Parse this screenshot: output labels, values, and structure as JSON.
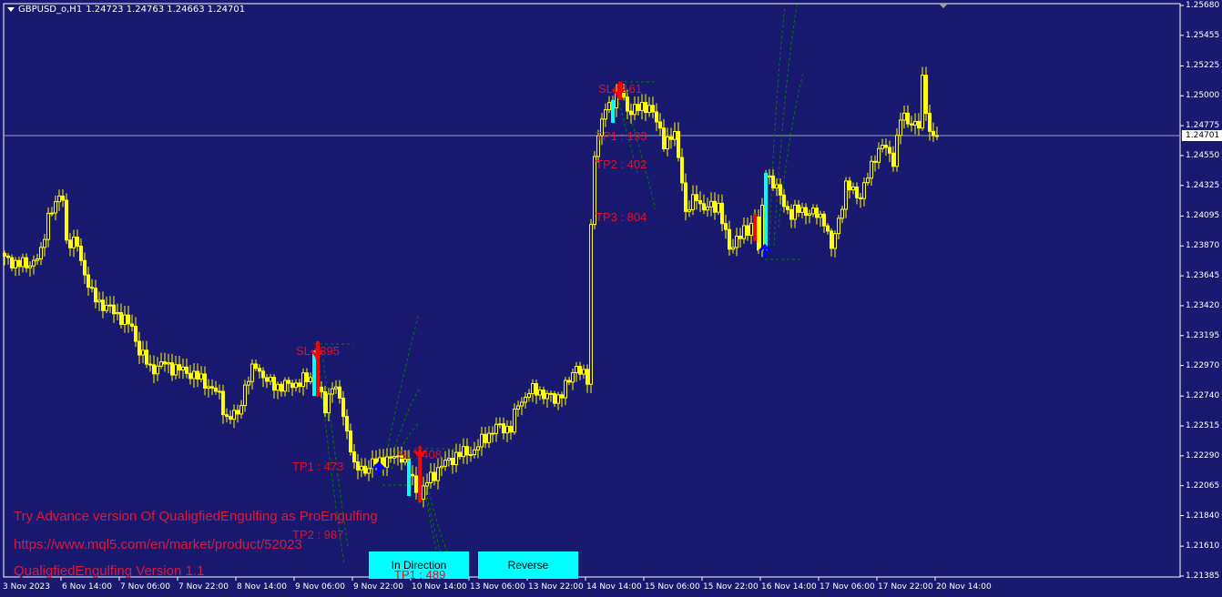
{
  "header": {
    "symbol": "GBPUSD_o,H1",
    "ohlc": "1.24723 1.24763 1.24663 1.24701"
  },
  "current_price": "1.24701",
  "colors": {
    "background": "#191970",
    "candle": "#ffff00",
    "bull_signal": "#00ffff",
    "bear_signal": "#ff0000",
    "target_line": "#008000",
    "label": "#e0102a",
    "button": "#00ffff"
  },
  "chart_data": {
    "type": "candlestick",
    "title": "GBPUSD_o,H1",
    "ylim": [
      1.21385,
      1.2568
    ],
    "y_ticks": [
      "1.25680",
      "1.25455",
      "1.25225",
      "1.25000",
      "1.24775",
      "1.24550",
      "1.24325",
      "1.24095",
      "1.23870",
      "1.23645",
      "1.23420",
      "1.23195",
      "1.22970",
      "1.22740",
      "1.22515",
      "1.22290",
      "1.22065",
      "1.21840",
      "1.21610",
      "1.21385"
    ],
    "x_ticks": [
      "3 Nov 2023",
      "6 Nov 14:00",
      "7 Nov 06:00",
      "7 Nov 22:00",
      "8 Nov 14:00",
      "9 Nov 06:00",
      "9 Nov 22:00",
      "10 Nov 14:00",
      "13 Nov 06:00",
      "13 Nov 22:00",
      "14 Nov 14:00",
      "15 Nov 06:00",
      "15 Nov 22:00",
      "16 Nov 14:00",
      "17 Nov 06:00",
      "17 Nov 22:00",
      "20 Nov 14:00"
    ],
    "bars_per_x_tick": 16,
    "close_keypoints": [
      [
        0,
        1.23769
      ],
      [
        6,
        1.23721
      ],
      [
        10,
        1.23803
      ],
      [
        12,
        1.24111
      ],
      [
        16,
        1.24248
      ],
      [
        17,
        1.23906
      ],
      [
        20,
        1.23872
      ],
      [
        22,
        1.23666
      ],
      [
        24,
        1.23495
      ],
      [
        27,
        1.23426
      ],
      [
        31,
        1.23358
      ],
      [
        35,
        1.23255
      ],
      [
        37,
        1.23084
      ],
      [
        40,
        1.22947
      ],
      [
        44,
        1.22981
      ],
      [
        47,
        1.22947
      ],
      [
        51,
        1.22913
      ],
      [
        55,
        1.22844
      ],
      [
        59,
        1.22741
      ],
      [
        61,
        1.2257
      ],
      [
        64,
        1.22604
      ],
      [
        66,
        1.2281
      ],
      [
        69,
        1.22981
      ],
      [
        72,
        1.22844
      ],
      [
        76,
        1.2281
      ],
      [
        81,
        1.22844
      ],
      [
        84,
        1.22878
      ],
      [
        85,
        1.22981
      ],
      [
        86,
        1.2281
      ],
      [
        88,
        1.22639
      ],
      [
        90,
        1.22844
      ],
      [
        92,
        1.22707
      ],
      [
        95,
        1.22365
      ],
      [
        96,
        1.22193
      ],
      [
        99,
        1.22193
      ],
      [
        101,
        1.22227
      ],
      [
        104,
        1.22262
      ],
      [
        106,
        1.22262
      ],
      [
        109,
        1.22296
      ],
      [
        111,
        1.22159
      ],
      [
        114,
        1.21988
      ],
      [
        116,
        1.22091
      ],
      [
        119,
        1.22193
      ],
      [
        124,
        1.22296
      ],
      [
        129,
        1.2233
      ],
      [
        132,
        1.22433
      ],
      [
        135,
        1.22502
      ],
      [
        139,
        1.22502
      ],
      [
        141,
        1.22673
      ],
      [
        144,
        1.22776
      ],
      [
        147,
        1.22776
      ],
      [
        151,
        1.22707
      ],
      [
        155,
        1.22844
      ],
      [
        157,
        1.22981
      ],
      [
        160,
        1.22844
      ],
      [
        161,
        1.24009
      ],
      [
        162,
        1.24591
      ],
      [
        165,
        1.24899
      ],
      [
        167,
        1.24968
      ],
      [
        169,
        1.25036
      ],
      [
        171,
        1.24899
      ],
      [
        174,
        1.24899
      ],
      [
        177,
        1.24933
      ],
      [
        179,
        1.24796
      ],
      [
        181,
        1.24659
      ],
      [
        184,
        1.24694
      ],
      [
        186,
        1.24385
      ],
      [
        187,
        1.24111
      ],
      [
        190,
        1.24248
      ],
      [
        192,
        1.24146
      ],
      [
        196,
        1.2418
      ],
      [
        199,
        1.23837
      ],
      [
        201,
        1.2394
      ],
      [
        204,
        1.23974
      ],
      [
        206,
        1.24111
      ],
      [
        207,
        1.23837
      ],
      [
        209,
        1.2442
      ],
      [
        211,
        1.24351
      ],
      [
        214,
        1.2418
      ],
      [
        216,
        1.24111
      ],
      [
        219,
        1.24146
      ],
      [
        222,
        1.24111
      ],
      [
        225,
        1.24077
      ],
      [
        227,
        1.23837
      ],
      [
        229,
        1.24077
      ],
      [
        231,
        1.24317
      ],
      [
        235,
        1.24248
      ],
      [
        237,
        1.24385
      ],
      [
        239,
        1.24557
      ],
      [
        241,
        1.24625
      ],
      [
        244,
        1.24522
      ],
      [
        246,
        1.24831
      ],
      [
        250,
        1.24796
      ],
      [
        251,
        1.24762
      ],
      [
        252,
        1.25105
      ],
      [
        254,
        1.24728
      ],
      [
        256,
        1.24701
      ]
    ],
    "signals": [
      {
        "type": "bull",
        "bar": 85,
        "from": 1.22741,
        "to": 1.23084
      },
      {
        "type": "bear",
        "bar": 86,
        "from": 1.23153,
        "to": 1.22741
      },
      {
        "type": "bull",
        "bar": 111,
        "from": 1.21988,
        "to": 1.22262
      },
      {
        "type": "bear",
        "bar": 114,
        "from": 1.2233,
        "to": 1.21942
      },
      {
        "type": "bull",
        "bar": 167,
        "from": 1.24796,
        "to": 1.24968
      },
      {
        "type": "bear",
        "bar": 169,
        "from": 1.25105,
        "to": 1.24968
      },
      {
        "type": "bear",
        "bar": 206,
        "from": 1.24111,
        "to": 1.23906
      },
      {
        "type": "bull",
        "bar": 209,
        "from": 1.23837,
        "to": 1.2442
      }
    ]
  },
  "labels": {
    "sl1": "SL : 395",
    "tp1a": "TP1 : 473",
    "tp2a": "TP2 : 987",
    "sl2": "SL : 408",
    "tp1b": "TP1 : 489",
    "sl3": "SL : 161",
    "tp1c": "TP1 : 193",
    "tp2c": "TP2 : 402",
    "tp3c": "TP3 : 804"
  },
  "messages": [
    "Try Advance version Of QualigfiedEngulfing as ProEngulfing",
    "https://www.mql5.com/en/market/product/52023",
    "QualigfiedEngulfing Version 1.1"
  ],
  "buttons": {
    "in_direction": "In Direction",
    "reverse": "Reverse"
  }
}
